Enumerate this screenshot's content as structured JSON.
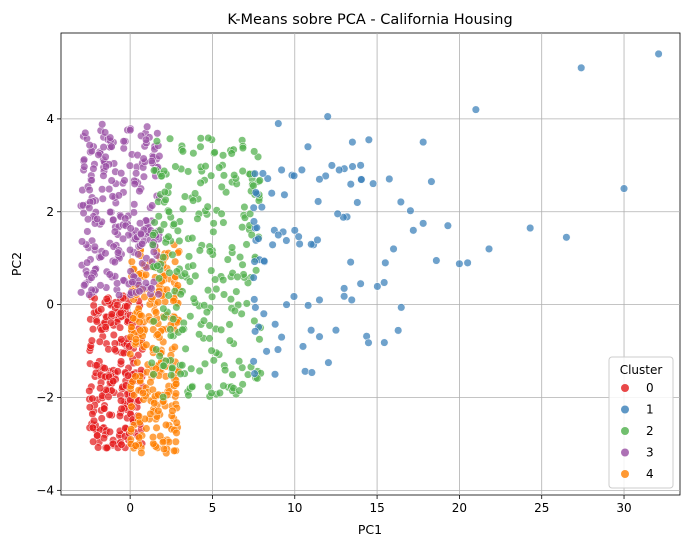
{
  "chart_data": {
    "type": "scatter",
    "title": "K-Means sobre PCA - California Housing",
    "xlabel": "PC1",
    "ylabel": "PC2",
    "xlim": [
      -4.2,
      33.4
    ],
    "ylim": [
      -4.1,
      5.85
    ],
    "x_ticks": [
      0,
      5,
      10,
      15,
      20,
      25,
      30
    ],
    "y_ticks": [
      -4,
      -2,
      0,
      2,
      4
    ],
    "grid": true,
    "legend": {
      "title": "Cluster",
      "placement": "bottom-right"
    },
    "series": [
      {
        "name": "0",
        "color": "#e41a1c"
      },
      {
        "name": "1",
        "color": "#377eb8"
      },
      {
        "name": "2",
        "color": "#4daf4a"
      },
      {
        "name": "3",
        "color": "#984ea3"
      },
      {
        "name": "4",
        "color": "#ff7f00"
      }
    ],
    "cluster_regions": [
      {
        "series": "0",
        "x_range": [
          -2.5,
          0.8
        ],
        "y_range": [
          -3.1,
          0.2
        ]
      },
      {
        "series": "4",
        "x_range": [
          0.0,
          3.0
        ],
        "y_range": [
          -3.2,
          1.3
        ]
      },
      {
        "series": "3",
        "x_range": [
          -3.0,
          1.8
        ],
        "y_range": [
          0.2,
          3.9
        ]
      },
      {
        "series": "2",
        "x_range": [
          1.3,
          8.0
        ],
        "y_range": [
          -2.0,
          3.6
        ]
      },
      {
        "series": "1",
        "x_range": [
          7.5,
          32.0
        ],
        "y_range": [
          -1.5,
          5.4
        ]
      }
    ],
    "points": {
      "1": [
        [
          32.1,
          5.4
        ],
        [
          27.4,
          5.1
        ],
        [
          30.0,
          2.5
        ],
        [
          21.0,
          4.2
        ],
        [
          26.5,
          1.45
        ],
        [
          24.3,
          1.65
        ],
        [
          21.8,
          1.2
        ],
        [
          20.5,
          0.9
        ],
        [
          20.0,
          0.88
        ],
        [
          19.3,
          1.7
        ],
        [
          18.6,
          0.95
        ],
        [
          17.8,
          3.5
        ],
        [
          18.3,
          2.65
        ],
        [
          17.8,
          1.75
        ],
        [
          17.2,
          1.6
        ],
        [
          14.5,
          3.55
        ],
        [
          13.8,
          2.2
        ],
        [
          12.0,
          4.05
        ],
        [
          16.0,
          1.2
        ],
        [
          15.5,
          0.9
        ],
        [
          14.0,
          0.45
        ],
        [
          13.0,
          0.35
        ],
        [
          11.5,
          0.1
        ],
        [
          9.0,
          3.9
        ],
        [
          8.6,
          2.4
        ],
        [
          8.0,
          2.1
        ],
        [
          9.5,
          0.0
        ],
        [
          9.2,
          -0.7
        ],
        [
          8.8,
          -1.5
        ],
        [
          10.5,
          -0.9
        ],
        [
          12.5,
          -0.55
        ],
        [
          11.0,
          1.3
        ],
        [
          10.0,
          1.6
        ],
        [
          9.0,
          1.5
        ],
        [
          13.5,
          3.5
        ],
        [
          12.7,
          2.9
        ],
        [
          14.0,
          3.0
        ],
        [
          10.8,
          3.4
        ],
        [
          11.5,
          2.7
        ],
        [
          9.2,
          2.9
        ]
      ]
    }
  }
}
